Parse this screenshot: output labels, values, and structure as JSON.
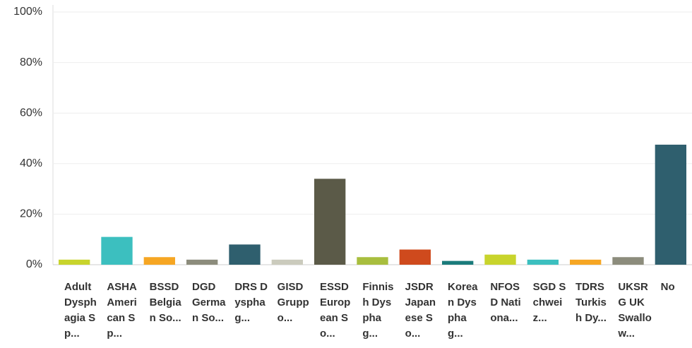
{
  "chart_data": {
    "type": "bar",
    "categories": [
      "Adult Dysphagia Sp...",
      "ASHA American Sp...",
      "BSSD Belgian So...",
      "DGD German So...",
      "DRS Dysphag...",
      "GISD Gruppo...",
      "ESSD European So...",
      "Finnish Dysphag...",
      "JSDR Japanese So...",
      "Korean Dysphag...",
      "NFOSD Nationa...",
      "SGD Schweiz...",
      "TDRS Turkish Dy...",
      "UKSRG UK Swallow...",
      "No"
    ],
    "values": [
      2,
      11,
      3,
      2,
      8,
      2,
      34,
      3,
      6,
      1.5,
      4,
      2,
      2,
      3,
      47.5
    ],
    "colors": [
      "#c8d42c",
      "#3cbfbf",
      "#f6a623",
      "#8c8c7c",
      "#2f5f6e",
      "#cbcbbd",
      "#5b5a48",
      "#a8be3e",
      "#cf4a1d",
      "#1b7b7b",
      "#c8d42c",
      "#3cbfbf",
      "#f6a623",
      "#8c8c7c",
      "#2f5f6e"
    ],
    "ylim": [
      0,
      100
    ],
    "yticks": [
      {
        "value": 0,
        "label": "0%"
      },
      {
        "value": 20,
        "label": "20%"
      },
      {
        "value": 40,
        "label": "40%"
      },
      {
        "value": 60,
        "label": "60%"
      },
      {
        "value": 80,
        "label": "80%"
      },
      {
        "value": 100,
        "label": "100%"
      }
    ],
    "grid": true
  }
}
